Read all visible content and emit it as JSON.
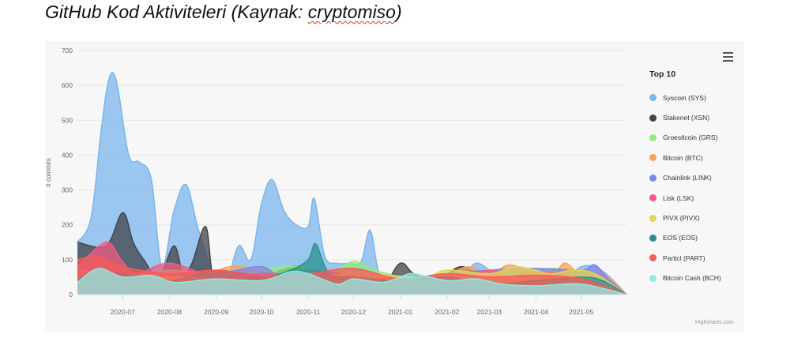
{
  "header": {
    "title_main": "GitHub Kod Aktiviteleri (Kaynak: ",
    "title_link": "cryptomiso",
    "title_end": ")"
  },
  "credits": "Highcharts.com",
  "chart_data": {
    "type": "area",
    "ylabel": "# commits",
    "ylim": [
      0,
      700
    ],
    "yticks": [
      0,
      100,
      200,
      300,
      400,
      500,
      600,
      700
    ],
    "xlim": [
      "2020-06-01",
      "2021-05-31"
    ],
    "xticks": [
      "2020-07",
      "2020-08",
      "2020-09",
      "2020-10",
      "2020-11",
      "2020-12",
      "2021-01",
      "2021-02",
      "2021-03",
      "2021-04",
      "2021-05"
    ],
    "legend_title": "Top 10",
    "legend_position": "right",
    "series": [
      {
        "name": "Syscoin (SYS)",
        "color": "#7cb5ec",
        "x": [
          "2020-06-01",
          "2020-06-10",
          "2020-06-17",
          "2020-06-22",
          "2020-06-27",
          "2020-07-05",
          "2020-07-12",
          "2020-07-20",
          "2020-07-27",
          "2020-08-04",
          "2020-08-12",
          "2020-08-20",
          "2020-08-31",
          "2020-09-08",
          "2020-09-16",
          "2020-09-24",
          "2020-10-01",
          "2020-10-08",
          "2020-10-16",
          "2020-10-24",
          "2020-11-01",
          "2020-11-05",
          "2020-11-12",
          "2020-11-20",
          "2020-11-28",
          "2020-12-06",
          "2020-12-12",
          "2020-12-18",
          "2020-12-26",
          "2021-01-05",
          "2021-01-15",
          "2021-01-27",
          "2021-02-10",
          "2021-02-20",
          "2021-03-05",
          "2021-03-20",
          "2021-04-05",
          "2021-04-20",
          "2021-05-01",
          "2021-05-10",
          "2021-05-20",
          "2021-05-31"
        ],
        "y": [
          150,
          220,
          480,
          620,
          610,
          400,
          380,
          330,
          80,
          240,
          315,
          190,
          45,
          40,
          140,
          100,
          260,
          330,
          240,
          200,
          195,
          275,
          110,
          90,
          90,
          95,
          185,
          60,
          50,
          40,
          50,
          45,
          40,
          90,
          60,
          40,
          40,
          50,
          80,
          80,
          50,
          0
        ]
      },
      {
        "name": "Stakenet (XSN)",
        "color": "#434348",
        "x": [
          "2020-06-01",
          "2020-06-20",
          "2020-07-01",
          "2020-07-08",
          "2020-07-15",
          "2020-07-25",
          "2020-08-04",
          "2020-08-10",
          "2020-08-16",
          "2020-08-25",
          "2020-08-30",
          "2020-09-08",
          "2020-09-20",
          "2020-10-01",
          "2020-10-15",
          "2020-10-25",
          "2020-11-05",
          "2020-11-15",
          "2020-12-01",
          "2020-12-20",
          "2021-01-01",
          "2021-01-10",
          "2021-01-25",
          "2021-02-10",
          "2021-02-25",
          "2021-03-10",
          "2021-03-25",
          "2021-04-05",
          "2021-04-20",
          "2021-05-01",
          "2021-05-10",
          "2021-05-20",
          "2021-05-31"
        ],
        "y": [
          150,
          140,
          235,
          150,
          100,
          50,
          140,
          60,
          90,
          195,
          50,
          60,
          40,
          50,
          70,
          80,
          40,
          40,
          30,
          25,
          90,
          60,
          40,
          80,
          50,
          40,
          30,
          20,
          60,
          30,
          40,
          40,
          0
        ]
      },
      {
        "name": "Groestlcoin (GRS)",
        "color": "#90ed7d",
        "x": [
          "2020-06-01",
          "2020-07-01",
          "2020-08-01",
          "2020-09-01",
          "2020-10-01",
          "2020-11-01",
          "2020-11-15",
          "2020-12-01",
          "2020-12-15",
          "2021-01-01",
          "2021-01-20",
          "2021-02-10",
          "2021-03-01",
          "2021-03-20",
          "2021-04-10",
          "2021-05-01",
          "2021-05-31"
        ],
        "y": [
          60,
          55,
          70,
          60,
          75,
          80,
          60,
          95,
          70,
          50,
          30,
          40,
          35,
          40,
          75,
          55,
          0
        ]
      },
      {
        "name": "Bitcoin (BTC)",
        "color": "#f7a35c",
        "x": [
          "2020-06-01",
          "2020-06-20",
          "2020-07-10",
          "2020-08-01",
          "2020-08-20",
          "2020-09-10",
          "2020-10-01",
          "2020-10-20",
          "2020-11-10",
          "2020-12-01",
          "2020-12-20",
          "2021-01-10",
          "2021-02-01",
          "2021-02-15",
          "2021-03-01",
          "2021-03-15",
          "2021-04-01",
          "2021-04-10",
          "2021-04-20",
          "2021-05-01",
          "2021-05-15",
          "2021-05-31"
        ],
        "y": [
          70,
          60,
          40,
          65,
          50,
          80,
          70,
          50,
          45,
          55,
          40,
          45,
          55,
          80,
          60,
          85,
          55,
          40,
          90,
          55,
          60,
          0
        ]
      },
      {
        "name": "Chainlink (LINK)",
        "color": "#8085e9",
        "x": [
          "2020-06-01",
          "2020-07-15",
          "2020-09-01",
          "2020-10-01",
          "2020-10-15",
          "2020-11-01",
          "2020-12-01",
          "2021-01-01",
          "2021-02-01",
          "2021-03-01",
          "2021-04-01",
          "2021-05-01",
          "2021-05-10",
          "2021-05-20",
          "2021-05-31"
        ],
        "y": [
          40,
          50,
          60,
          80,
          45,
          70,
          55,
          45,
          60,
          70,
          75,
          70,
          85,
          40,
          0
        ]
      },
      {
        "name": "Lisk (LSK)",
        "color": "#f15c80",
        "x": [
          "2020-06-01",
          "2020-06-20",
          "2020-06-30",
          "2020-07-10",
          "2020-08-01",
          "2020-09-01",
          "2020-10-01",
          "2020-11-01",
          "2020-12-01",
          "2021-01-01",
          "2021-02-01",
          "2021-03-01",
          "2021-03-15",
          "2021-04-01",
          "2021-05-01",
          "2021-05-31"
        ],
        "y": [
          80,
          150,
          100,
          60,
          90,
          50,
          60,
          55,
          40,
          50,
          45,
          70,
          50,
          65,
          50,
          0
        ]
      },
      {
        "name": "PIVX (PIVX)",
        "color": "#e4d354",
        "x": [
          "2020-06-01",
          "2020-08-01",
          "2020-10-01",
          "2020-12-01",
          "2021-01-15",
          "2021-02-01",
          "2021-03-01",
          "2021-03-20",
          "2021-04-10",
          "2021-04-25",
          "2021-05-10",
          "2021-05-31"
        ],
        "y": [
          40,
          50,
          40,
          60,
          50,
          70,
          60,
          80,
          60,
          70,
          60,
          0
        ]
      },
      {
        "name": "EOS (EOS)",
        "color": "#2b908f",
        "x": [
          "2020-06-01",
          "2020-07-01",
          "2020-08-01",
          "2020-09-01",
          "2020-10-01",
          "2020-10-20",
          "2020-11-01",
          "2020-11-06",
          "2020-11-15",
          "2020-12-01",
          "2021-01-01",
          "2021-02-01",
          "2021-03-01",
          "2021-04-01",
          "2021-05-01",
          "2021-05-15",
          "2021-05-31"
        ],
        "y": [
          50,
          60,
          40,
          70,
          50,
          70,
          100,
          145,
          60,
          50,
          40,
          50,
          30,
          40,
          50,
          40,
          0
        ]
      },
      {
        "name": "Particl (PART)",
        "color": "#f45b5b",
        "x": [
          "2020-06-01",
          "2020-06-15",
          "2020-07-01",
          "2020-08-01",
          "2020-09-01",
          "2020-10-01",
          "2020-11-01",
          "2020-12-01",
          "2021-01-01",
          "2021-02-01",
          "2021-03-01",
          "2021-04-01",
          "2021-05-01",
          "2021-05-31"
        ],
        "y": [
          100,
          110,
          80,
          60,
          70,
          55,
          60,
          75,
          45,
          60,
          50,
          55,
          45,
          0
        ]
      },
      {
        "name": "Bitcoin Cash (BCH)",
        "color": "#91e8e1",
        "x": [
          "2020-06-01",
          "2020-06-15",
          "2020-07-01",
          "2020-07-20",
          "2020-08-05",
          "2020-09-01",
          "2020-10-01",
          "2020-10-20",
          "2020-11-01",
          "2020-11-20",
          "2020-12-01",
          "2020-12-20",
          "2021-01-01",
          "2021-01-10",
          "2021-02-01",
          "2021-02-20",
          "2021-03-10",
          "2021-04-01",
          "2021-05-01",
          "2021-05-31"
        ],
        "y": [
          35,
          75,
          50,
          55,
          35,
          45,
          40,
          65,
          60,
          30,
          45,
          35,
          50,
          60,
          40,
          45,
          30,
          25,
          30,
          0
        ]
      }
    ]
  }
}
